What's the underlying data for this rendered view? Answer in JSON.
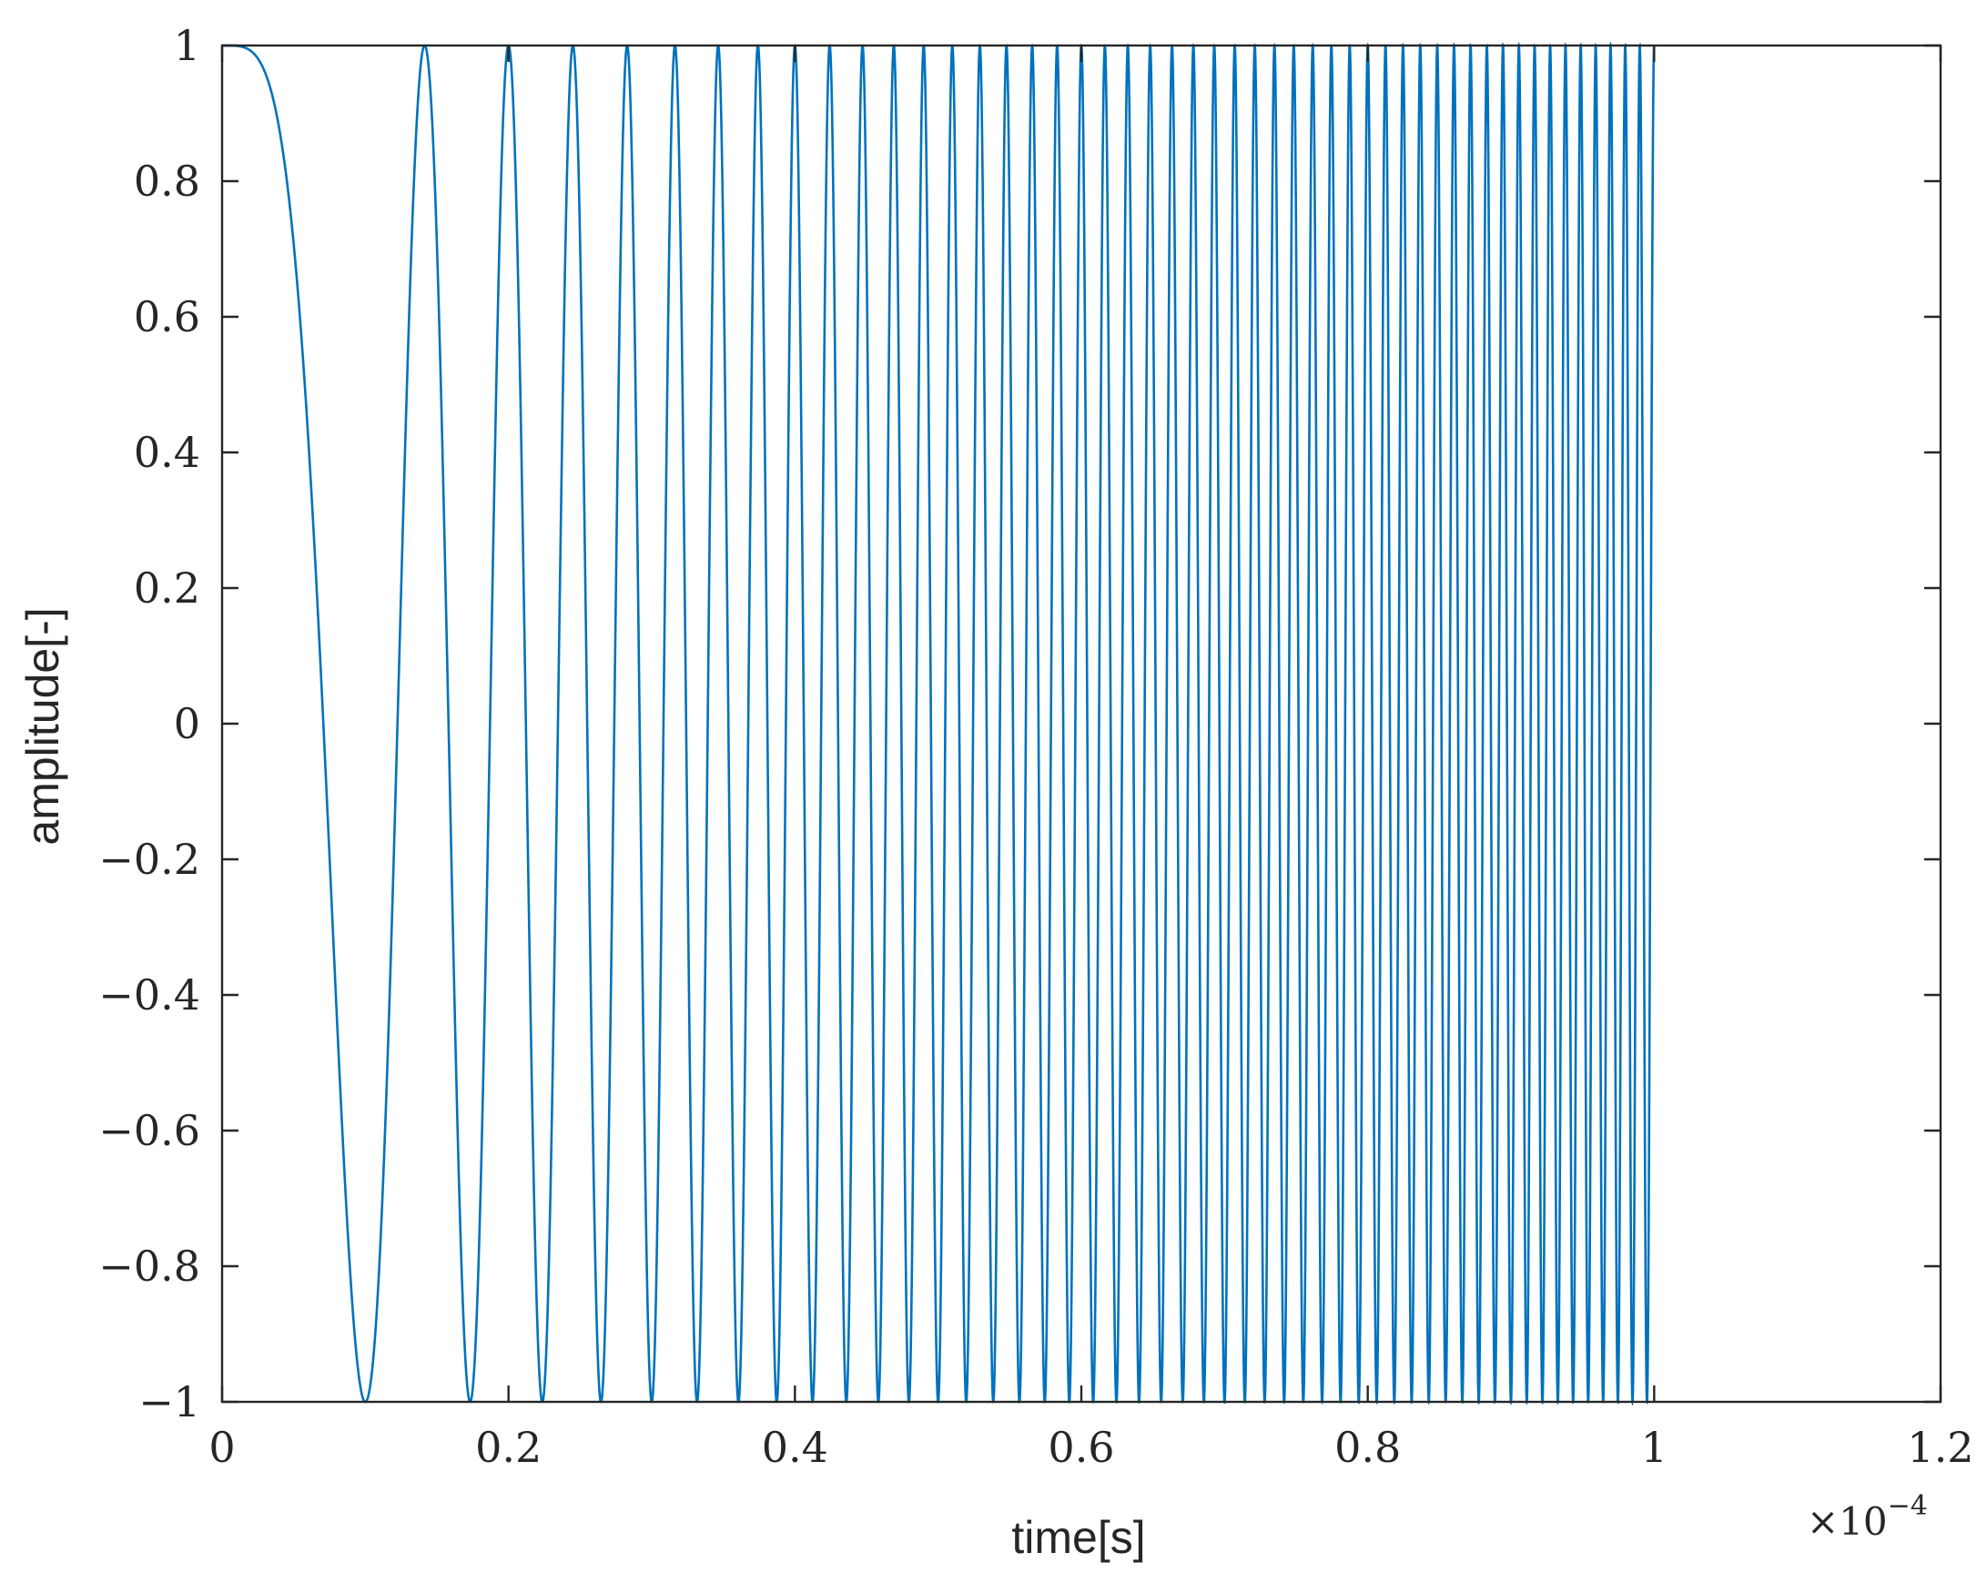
{
  "chart_data": {
    "type": "line",
    "title": "",
    "xlabel": "time[s]",
    "ylabel": "amplitude[-]",
    "x_multiplier": {
      "base": "×10",
      "exponent": "−4"
    },
    "xlim": [
      0,
      1.2
    ],
    "ylim": [
      -1,
      1
    ],
    "x_ticks": [
      0,
      0.2,
      0.4,
      0.6,
      0.8,
      1,
      1.2
    ],
    "x_tick_labels": [
      "0",
      "0.2",
      "0.4",
      "0.6",
      "0.8",
      "1",
      "1.2"
    ],
    "y_ticks": [
      -1,
      -0.8,
      -0.6,
      -0.4,
      -0.2,
      0,
      0.2,
      0.4,
      0.6,
      0.8,
      1
    ],
    "y_tick_labels": [
      "−1",
      "−0.8",
      "−0.6",
      "−0.4",
      "−0.2",
      "0",
      "0.2",
      "0.4",
      "0.6",
      "0.8",
      "1"
    ],
    "grid": false,
    "series": [
      {
        "signal": "linear chirp, cos(2π·(f1·t)²/2), f1 ≈ 1 in units of ×10^-4",
        "color": "#0072BD",
        "x_range": [
          0,
          1
        ],
        "peaks_x": [
          0,
          0.141,
          0.2,
          0.245,
          0.283,
          0.316,
          0.346,
          0.374,
          0.4,
          0.424,
          0.447,
          0.469,
          0.49,
          0.51,
          0.529,
          0.548,
          0.566,
          0.583,
          0.6,
          0.616,
          0.632,
          0.648,
          0.663,
          0.678,
          0.693,
          0.707,
          0.721,
          0.735,
          0.748,
          0.762,
          0.775,
          0.787,
          0.8,
          0.812,
          0.825,
          0.837,
          0.849,
          0.86,
          0.872,
          0.883,
          0.894,
          0.906,
          0.917,
          0.927,
          0.938,
          0.949,
          0.959,
          0.97,
          0.98,
          0.99,
          1.0
        ],
        "troughs_x": [
          0.1,
          0.173,
          0.224,
          0.265,
          0.3,
          0.332,
          0.361,
          0.387,
          0.412,
          0.436,
          0.458,
          0.48,
          0.5,
          0.52,
          0.539,
          0.557,
          0.574,
          0.592,
          0.608,
          0.624,
          0.64,
          0.656,
          0.671,
          0.686,
          0.7,
          0.714,
          0.728,
          0.742,
          0.755,
          0.768,
          0.781,
          0.794,
          0.806,
          0.819,
          0.831,
          0.843,
          0.854,
          0.866,
          0.877,
          0.889,
          0.9,
          0.911,
          0.922,
          0.933,
          0.943,
          0.954,
          0.964,
          0.975,
          0.985,
          0.995
        ]
      }
    ]
  }
}
